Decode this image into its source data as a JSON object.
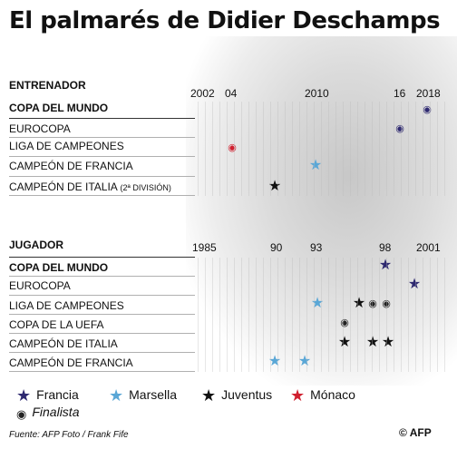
{
  "title": "El palmarés de Didier Deschamps",
  "colors": {
    "france": "#2e2970",
    "marseille": "#5aa7d6",
    "juventus": "#111111",
    "monaco": "#d0202f",
    "finalist": "#222222"
  },
  "coach": {
    "label": "ENTRENADOR",
    "years": [
      "2002",
      "04",
      "2010",
      "16",
      "2018"
    ],
    "rows": [
      {
        "label": "COPA DEL MUNDO",
        "bold": true
      },
      {
        "label": "EUROCOPA",
        "bold": false
      },
      {
        "label": "LIGA DE CAMPEONES",
        "bold": false
      },
      {
        "label": "CAMPEÓN DE FRANCIA",
        "bold": false
      },
      {
        "label": "CAMPEÓN DE ITALIA",
        "suffix_small": "(2ª DIVISIÓN)",
        "bold": false
      }
    ]
  },
  "player": {
    "label": "JUGADOR",
    "years": [
      "1985",
      "90",
      "93",
      "98",
      "2001"
    ],
    "rows": [
      {
        "label": "COPA DEL MUNDO",
        "bold": true
      },
      {
        "label": "EUROCOPA",
        "bold": false
      },
      {
        "label": "LIGA DE CAMPEONES",
        "bold": false
      },
      {
        "label": "COPA DE LA UEFA",
        "bold": false
      },
      {
        "label": "CAMPEÓN DE ITALIA",
        "bold": false
      },
      {
        "label": "CAMPEÓN DE FRANCIA",
        "bold": false
      }
    ]
  },
  "legend": {
    "francia": "Francia",
    "marsella": "Marsella",
    "juventus": "Juventus",
    "monaco": "Mónaco",
    "finalista": "Finalista"
  },
  "source": "Fuente: AFP Foto / Frank Fife",
  "logo_text": "© AFP"
}
